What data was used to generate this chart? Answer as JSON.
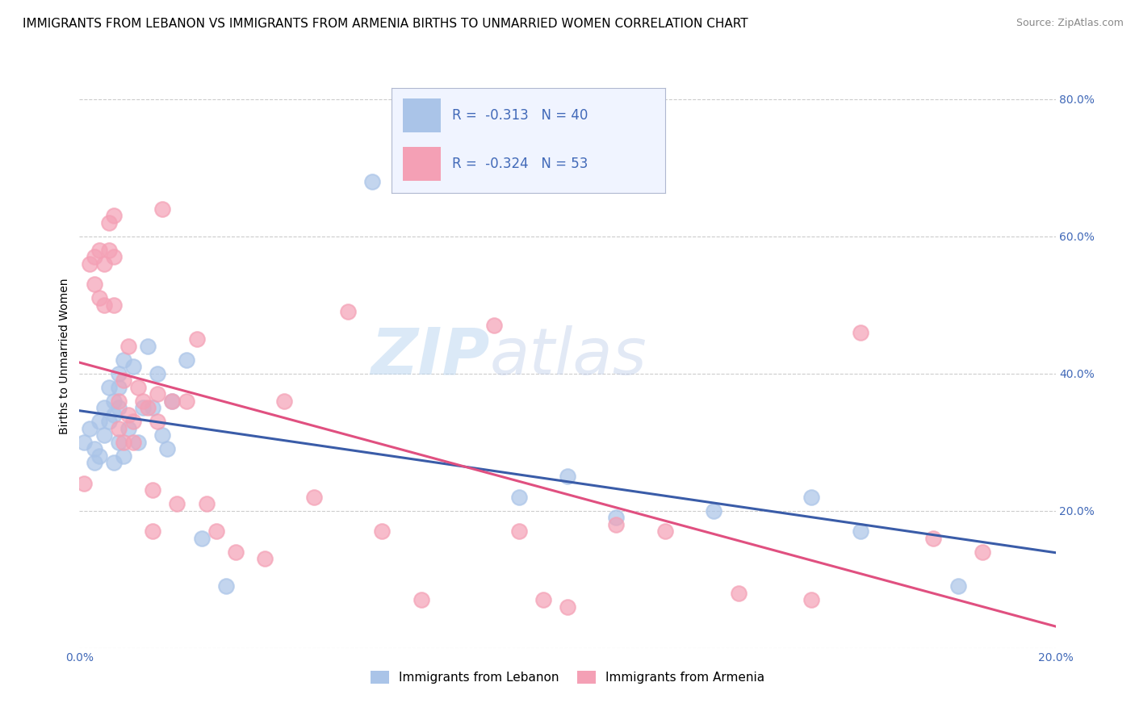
{
  "title": "IMMIGRANTS FROM LEBANON VS IMMIGRANTS FROM ARMENIA BIRTHS TO UNMARRIED WOMEN CORRELATION CHART",
  "source": "Source: ZipAtlas.com",
  "ylabel": "Births to Unmarried Women",
  "xlim": [
    0.0,
    0.2
  ],
  "ylim": [
    0.0,
    0.85
  ],
  "x_ticks": [
    0.0,
    0.04,
    0.08,
    0.12,
    0.16,
    0.2
  ],
  "x_tick_labels": [
    "0.0%",
    "",
    "",
    "",
    "",
    "20.0%"
  ],
  "y_ticks": [
    0.0,
    0.2,
    0.4,
    0.6,
    0.8
  ],
  "y_tick_labels": [
    "",
    "20.0%",
    "40.0%",
    "60.0%",
    "80.0%"
  ],
  "lebanon_color": "#aac4e8",
  "armenia_color": "#f4a0b5",
  "lebanon_line_color": "#3a5ca8",
  "armenia_line_color": "#e05080",
  "r_lebanon": -0.313,
  "n_lebanon": 40,
  "r_armenia": -0.324,
  "n_armenia": 53,
  "watermark_zip": "ZIP",
  "watermark_atlas": "atlas",
  "lebanon_x": [
    0.001,
    0.002,
    0.003,
    0.003,
    0.004,
    0.004,
    0.005,
    0.005,
    0.006,
    0.006,
    0.007,
    0.007,
    0.007,
    0.008,
    0.008,
    0.008,
    0.008,
    0.009,
    0.009,
    0.01,
    0.011,
    0.012,
    0.013,
    0.014,
    0.015,
    0.016,
    0.017,
    0.018,
    0.019,
    0.022,
    0.025,
    0.03,
    0.06,
    0.09,
    0.1,
    0.11,
    0.13,
    0.15,
    0.16,
    0.18
  ],
  "lebanon_y": [
    0.3,
    0.32,
    0.29,
    0.27,
    0.33,
    0.28,
    0.35,
    0.31,
    0.38,
    0.33,
    0.36,
    0.34,
    0.27,
    0.4,
    0.38,
    0.35,
    0.3,
    0.42,
    0.28,
    0.32,
    0.41,
    0.3,
    0.35,
    0.44,
    0.35,
    0.4,
    0.31,
    0.29,
    0.36,
    0.42,
    0.16,
    0.09,
    0.68,
    0.22,
    0.25,
    0.19,
    0.2,
    0.22,
    0.17,
    0.09
  ],
  "armenia_x": [
    0.001,
    0.002,
    0.003,
    0.003,
    0.004,
    0.004,
    0.005,
    0.005,
    0.006,
    0.006,
    0.007,
    0.007,
    0.007,
    0.008,
    0.008,
    0.009,
    0.009,
    0.01,
    0.01,
    0.011,
    0.011,
    0.012,
    0.013,
    0.014,
    0.015,
    0.015,
    0.016,
    0.016,
    0.017,
    0.019,
    0.02,
    0.022,
    0.024,
    0.026,
    0.028,
    0.032,
    0.038,
    0.042,
    0.048,
    0.055,
    0.062,
    0.07,
    0.085,
    0.09,
    0.095,
    0.1,
    0.11,
    0.12,
    0.135,
    0.15,
    0.16,
    0.175,
    0.185
  ],
  "armenia_y": [
    0.24,
    0.56,
    0.57,
    0.53,
    0.58,
    0.51,
    0.56,
    0.5,
    0.62,
    0.58,
    0.63,
    0.57,
    0.5,
    0.36,
    0.32,
    0.39,
    0.3,
    0.44,
    0.34,
    0.33,
    0.3,
    0.38,
    0.36,
    0.35,
    0.23,
    0.17,
    0.37,
    0.33,
    0.64,
    0.36,
    0.21,
    0.36,
    0.45,
    0.21,
    0.17,
    0.14,
    0.13,
    0.36,
    0.22,
    0.49,
    0.17,
    0.07,
    0.47,
    0.17,
    0.07,
    0.06,
    0.18,
    0.17,
    0.08,
    0.07,
    0.46,
    0.16,
    0.14
  ],
  "grid_color": "#cccccc",
  "background_color": "#ffffff",
  "title_fontsize": 11,
  "axis_label_fontsize": 10,
  "tick_fontsize": 10,
  "legend_fontsize": 12
}
